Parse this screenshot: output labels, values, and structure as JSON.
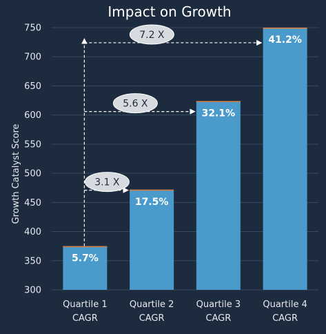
{
  "colors": {
    "background": "#1d2b3e",
    "bar": "#4a9bcb",
    "bar_top": "#e07b39",
    "grid": "#3a4a5e",
    "text": "#ffffff",
    "tick_text": "#e6e9ee",
    "ellipse_fill": "#d7dade",
    "ellipse_text": "#1d2b3e"
  },
  "chart_data": {
    "type": "bar",
    "title": "Impact on Growth",
    "xlabel": "",
    "ylabel": "Growth Catalyst Score",
    "ylim": [
      300,
      750
    ],
    "yticks": [
      300,
      350,
      400,
      450,
      500,
      550,
      600,
      650,
      700,
      750
    ],
    "grid": true,
    "categories": [
      [
        "Quartile 1",
        "CAGR"
      ],
      [
        "Quartile 2",
        "CAGR"
      ],
      [
        "Quartile 3",
        "CAGR"
      ],
      [
        "Quartile 4",
        "CAGR"
      ]
    ],
    "values": [
      375,
      472,
      624,
      750
    ],
    "data_labels": [
      "5.7%",
      "17.5%",
      "32.1%",
      "41.2%"
    ],
    "annotations": [
      {
        "label": "3.1 X",
        "from_category": 0,
        "to_category": 1,
        "level": 471
      },
      {
        "label": "5.6 X",
        "from_category": 0,
        "to_category": 2,
        "level": 606
      },
      {
        "label": "7.2 X",
        "from_category": 0,
        "to_category": 3,
        "level": 724
      }
    ]
  }
}
